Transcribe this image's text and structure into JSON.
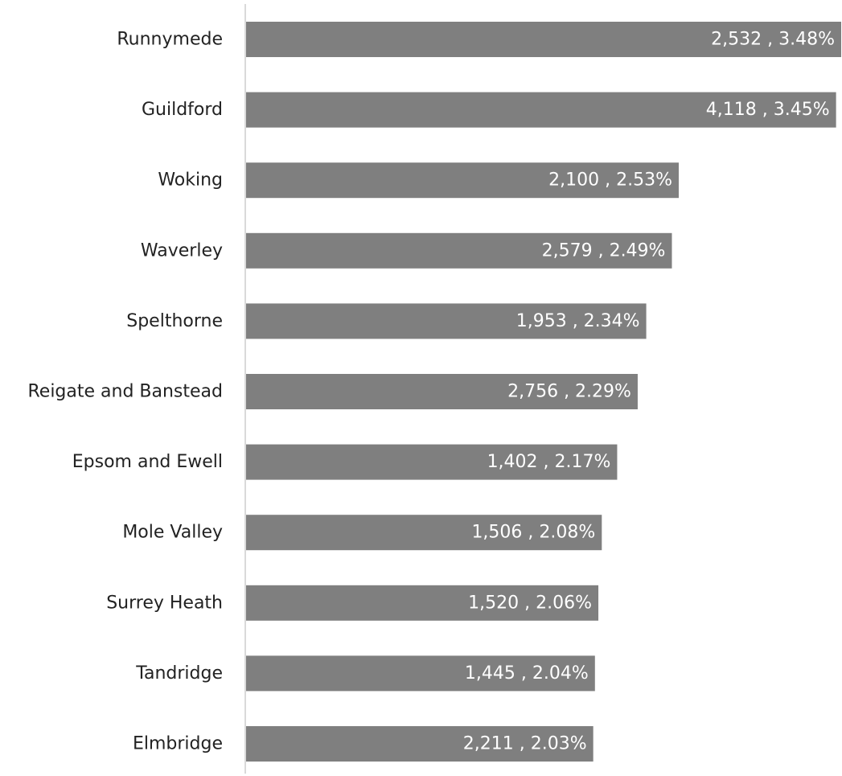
{
  "chart_data": {
    "type": "bar",
    "orientation": "horizontal",
    "categories": [
      "Runnymede",
      "Guildford",
      "Woking",
      "Waverley",
      "Spelthorne",
      "Reigate and Banstead",
      "Epsom and Ewell",
      "Mole Valley",
      "Surrey Heath",
      "Tandridge",
      "Elmbridge"
    ],
    "counts": [
      2532,
      4118,
      2100,
      2579,
      1953,
      2756,
      1402,
      1506,
      1520,
      1445,
      2211
    ],
    "values": [
      3.48,
      3.45,
      2.53,
      2.49,
      2.34,
      2.29,
      2.17,
      2.08,
      2.06,
      2.04,
      2.03
    ],
    "data_labels": [
      "2,532 , 3.48%",
      "4,118 , 3.45%",
      "2,100 , 2.53%",
      "2,579 , 2.49%",
      "1,953 , 2.34%",
      "2,756 , 2.29%",
      "1,402 , 2.17%",
      "1,506 , 2.08%",
      "1,520 , 2.06%",
      "1,445 , 2.04%",
      "2,211 , 2.03%"
    ],
    "xlim": [
      0,
      3.48
    ],
    "grid": false,
    "legend": "none",
    "colors": {
      "bar": "#7f7f7f",
      "axis": "#d9d9d9",
      "label": "#222222",
      "data_label": "#ffffff"
    }
  }
}
